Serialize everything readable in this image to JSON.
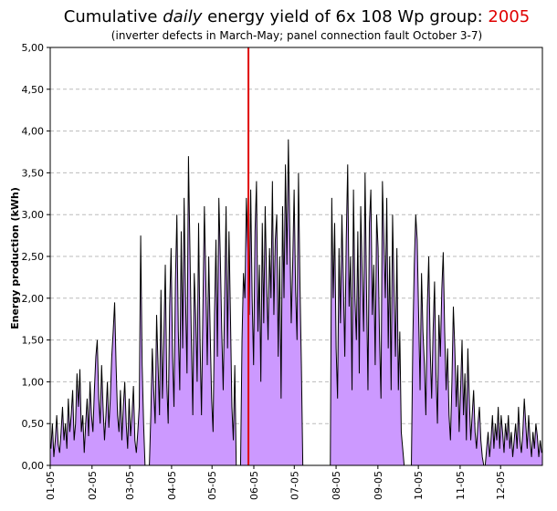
{
  "chart_data": {
    "type": "area",
    "title_prefix": "Cumulative",
    "title_em": "daily",
    "title_suffix": "energy yield of 6x 108 Wp group:",
    "title_year": "2005",
    "subtitle": "(inverter defects in March-May; panel connection fault October 3-7)",
    "ylabel": "Energy production (kWh)",
    "xlabel": "",
    "ylim": [
      0,
      5
    ],
    "yticks": [
      "0,00",
      "0,50",
      "1,00",
      "1,50",
      "2,00",
      "2,50",
      "3,00",
      "3,50",
      "4,00",
      "4,50",
      "5,00"
    ],
    "xticks": [
      {
        "day": 1,
        "label": "01-05"
      },
      {
        "day": 32,
        "label": "02-05"
      },
      {
        "day": 60,
        "label": "03-05"
      },
      {
        "day": 91,
        "label": "04-05"
      },
      {
        "day": 121,
        "label": "05-05"
      },
      {
        "day": 152,
        "label": "06-05"
      },
      {
        "day": 182,
        "label": "07-05"
      },
      {
        "day": 213,
        "label": "08-05"
      },
      {
        "day": 244,
        "label": "09-05"
      },
      {
        "day": 274,
        "label": "10-05"
      },
      {
        "day": 305,
        "label": "11-05"
      },
      {
        "day": 335,
        "label": "12-05"
      }
    ],
    "grid": true,
    "marker_day": 148,
    "x_days_range": [
      1,
      366
    ],
    "colors": {
      "fill": "#cc99ff",
      "line": "#000000",
      "marker": "#e00000",
      "grid": "#bbbbbb"
    },
    "series": [
      {
        "values": [
          0.2,
          0.5,
          0.1,
          0.3,
          0.6,
          0.25,
          0.15,
          0.4,
          0.7,
          0.3,
          0.5,
          0.2,
          0.8,
          0.4,
          0.6,
          0.9,
          0.3,
          0.5,
          1.1,
          0.7,
          1.15,
          0.4,
          0.6,
          0.15,
          0.5,
          0.8,
          0.35,
          1.0,
          0.6,
          0.4,
          0.9,
          1.3,
          1.5,
          0.8,
          0.5,
          1.2,
          0.7,
          0.3,
          0.6,
          1.0,
          0.45,
          0.8,
          1.3,
          1.6,
          1.95,
          1.2,
          0.6,
          0.4,
          0.9,
          0.3,
          0.7,
          1.0,
          0.5,
          0.2,
          0.8,
          0.35,
          0.6,
          0.95,
          0.3,
          0.15,
          0.4,
          0.7,
          2.75,
          1.2,
          0.5,
          0.0,
          0.0,
          0.0,
          0.0,
          0.6,
          1.4,
          0.9,
          0.5,
          1.8,
          1.2,
          0.6,
          2.1,
          0.8,
          1.5,
          2.4,
          1.0,
          0.5,
          1.9,
          2.6,
          1.3,
          0.7,
          2.2,
          3.0,
          1.6,
          0.9,
          2.8,
          1.4,
          3.2,
          2.0,
          1.1,
          3.7,
          2.6,
          1.5,
          0.6,
          2.3,
          1.8,
          1.0,
          2.9,
          1.5,
          0.6,
          1.9,
          3.1,
          2.2,
          1.2,
          2.5,
          1.6,
          0.8,
          0.4,
          1.8,
          2.7,
          1.3,
          3.2,
          2.5,
          1.6,
          0.9,
          2.0,
          3.1,
          1.4,
          2.8,
          1.8,
          0.7,
          0.3,
          1.2,
          0.0,
          0.0,
          0.0,
          0.0,
          1.5,
          2.3,
          2.0,
          3.2,
          2.6,
          1.8,
          3.3,
          2.0,
          1.2,
          2.8,
          3.4,
          1.6,
          2.4,
          1.0,
          2.9,
          1.7,
          3.1,
          2.2,
          1.5,
          2.6,
          2.0,
          3.4,
          1.8,
          2.7,
          3.0,
          1.3,
          2.5,
          0.8,
          3.1,
          2.0,
          3.6,
          2.4,
          3.9,
          2.8,
          1.7,
          2.4,
          3.3,
          2.1,
          1.5,
          3.5,
          2.2,
          1.2,
          0.0,
          0.0,
          0.0,
          0.0,
          0.0,
          0.0,
          0.0,
          0.0,
          0.0,
          0.0,
          0.0,
          0.0,
          0.0,
          0.0,
          0.0,
          0.0,
          0.0,
          0.0,
          0.0,
          0.0,
          3.2,
          2.0,
          2.9,
          1.4,
          0.8,
          2.6,
          1.7,
          3.0,
          2.2,
          1.3,
          2.7,
          3.6,
          1.9,
          2.5,
          0.9,
          3.3,
          2.0,
          1.5,
          2.8,
          1.1,
          3.1,
          2.3,
          1.6,
          3.5,
          2.1,
          0.9,
          2.9,
          3.3,
          1.8,
          2.4,
          1.2,
          3.0,
          2.6,
          1.5,
          0.8,
          3.4,
          2.7,
          2.0,
          3.2,
          1.4,
          2.5,
          0.9,
          3.0,
          2.1,
          1.3,
          2.6,
          0.9,
          1.6,
          0.4,
          0.2,
          0.0,
          0.0,
          0.0,
          0.0,
          0.0,
          0.0,
          1.5,
          2.4,
          3.0,
          2.7,
          1.8,
          0.9,
          2.3,
          1.6,
          1.2,
          0.6,
          1.9,
          2.5,
          1.4,
          0.8,
          1.6,
          2.2,
          1.1,
          0.5,
          1.8,
          1.3,
          2.1,
          2.55,
          1.6,
          0.9,
          1.4,
          0.6,
          0.3,
          1.0,
          1.9,
          1.4,
          0.7,
          1.2,
          0.4,
          0.9,
          1.5,
          0.6,
          1.1,
          0.3,
          1.4,
          0.8,
          0.3,
          0.6,
          0.9,
          0.4,
          0.2,
          0.5,
          0.7,
          0.3,
          0.1,
          0.0,
          0.0,
          0.2,
          0.4,
          0.1,
          0.3,
          0.6,
          0.2,
          0.5,
          0.3,
          0.7,
          0.2,
          0.6,
          0.4,
          0.15,
          0.5,
          0.3,
          0.6,
          0.2,
          0.4,
          0.1,
          0.3,
          0.5,
          0.2,
          0.7,
          0.3,
          0.15,
          0.4,
          0.8,
          0.5,
          0.2,
          0.6,
          0.3,
          0.1,
          0.4,
          0.2,
          0.5,
          0.35,
          0.1,
          0.3,
          0.15
        ]
      }
    ]
  }
}
